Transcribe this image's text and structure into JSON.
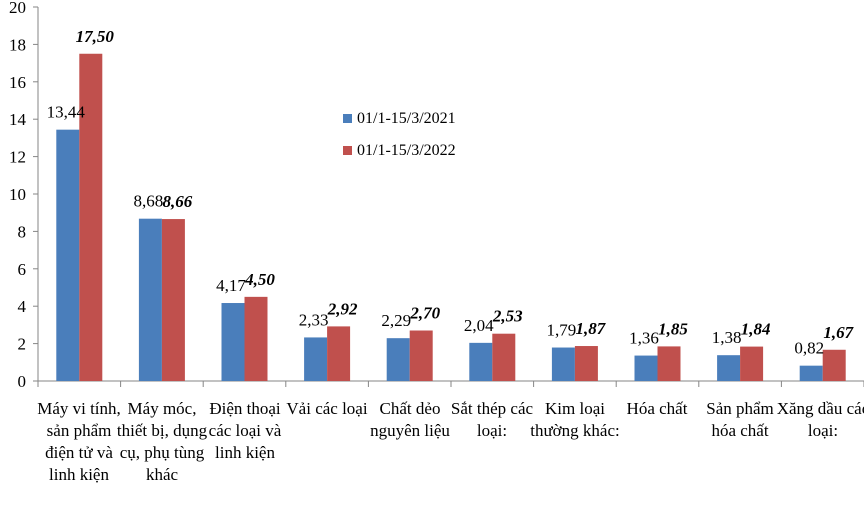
{
  "chart_data": {
    "type": "bar",
    "title": "",
    "xlabel": "",
    "ylabel": "",
    "ylim": [
      0,
      20
    ],
    "yticks": [
      "0",
      "2",
      "4",
      "6",
      "8",
      "10",
      "12",
      "14",
      "16",
      "18",
      "20"
    ],
    "grid": false,
    "legend_position": "center-right",
    "categories": [
      "Máy vi tính, sản phẩm điện tử và linh kiện",
      "Máy móc, thiết bị, dụng cụ, phụ tùng khác",
      "Điện thoại các loại và linh kiện",
      "Vải các loại",
      "Chất dẻo nguyên liệu",
      "Sắt thép các loại:",
      "Kim loại thường khác:",
      "Hóa chất",
      "Sản phẩm hóa chất",
      "Xăng dầu các loại:"
    ],
    "series": [
      {
        "name": "01/1-15/3/2021",
        "color": "#4a7ebb",
        "values": [
          13.44,
          8.68,
          4.17,
          2.33,
          2.29,
          2.04,
          1.79,
          1.36,
          1.38,
          0.82
        ],
        "labels": [
          "13,44",
          "8,68",
          "4,17",
          "2,33",
          "2,29",
          "2,04",
          "1,79",
          "1,36",
          "1,38",
          "0,82"
        ]
      },
      {
        "name": "01/1-15/3/2022",
        "color": "#c0504d",
        "values": [
          17.5,
          8.66,
          4.5,
          2.92,
          2.7,
          2.53,
          1.87,
          1.85,
          1.84,
          1.67
        ],
        "labels": [
          "17,50",
          "8,66",
          "4,50",
          "2,92",
          "2,70",
          "2,53",
          "1,87",
          "1,85",
          "1,84",
          "1,67"
        ]
      }
    ]
  }
}
